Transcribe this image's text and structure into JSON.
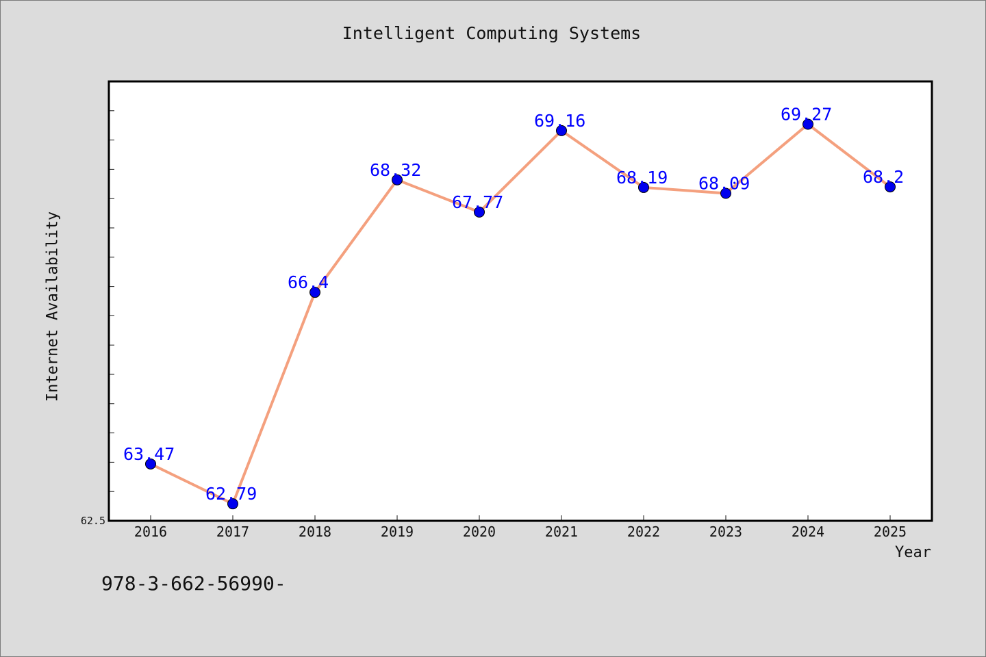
{
  "title": "Intelligent Computing Systems",
  "footnote": "978-3-662-56990-",
  "colors": {
    "line": "#f4a07e",
    "marker": "#0000ee",
    "label": "#0000ff",
    "plot_background": "#ffffff",
    "page_background": "#dcdcdc"
  },
  "chart_data": {
    "type": "line",
    "title": "Intelligent Computing Systems",
    "xlabel": "Year",
    "ylabel": "Internet Availability",
    "categories": [
      "2016",
      "2017",
      "2018",
      "2019",
      "2020",
      "2021",
      "2022",
      "2023",
      "2024",
      "2025"
    ],
    "values": [
      63.47,
      62.79,
      66.4,
      68.32,
      67.77,
      69.16,
      68.19,
      68.09,
      69.27,
      68.2
    ],
    "data_labels": [
      "63.47",
      "62.79",
      "66.4",
      "68.32",
      "67.77",
      "69.16",
      "68.19",
      "68.09",
      "69.27",
      "68.2"
    ],
    "ylim": [
      62.5,
      70.0
    ],
    "y_tick_labels": [
      "62.5"
    ],
    "grid": false,
    "legend": "none"
  }
}
